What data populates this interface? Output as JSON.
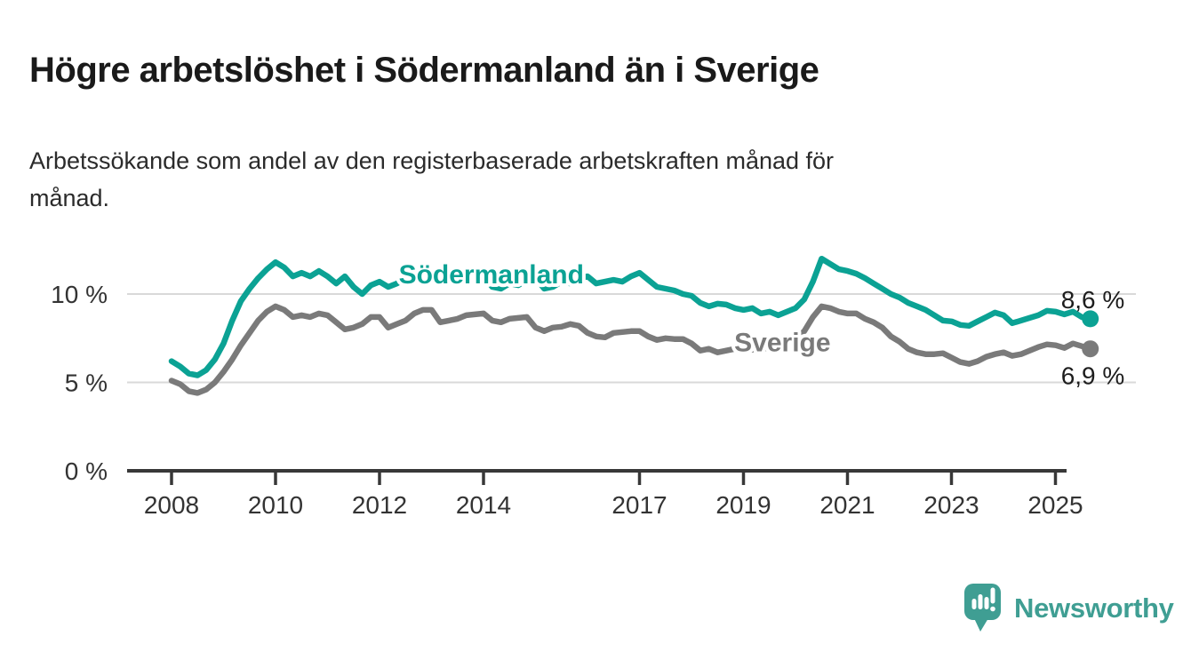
{
  "header": {
    "title": "Högre arbetslöshet i Södermanland än i Sverige",
    "subtitle": "Arbetssökande som andel av den registerbaserade arbetskraften månad för\nmånad."
  },
  "footer": {
    "brand": "Newsworthy",
    "brand_color": "#3f9e93",
    "logo_icon": "bar-chart-speech-bubble"
  },
  "colors": {
    "sodermanland_line": "#0ba294",
    "sverige_line": "#7a7a7a",
    "grid": "#d9d9d9",
    "axis": "#383838",
    "axis_text": "#333333",
    "value_text": "#1d1d1d"
  },
  "chart_data": {
    "type": "line",
    "title": "Högre arbetslöshet i Södermanland än i Sverige",
    "subtitle": "Arbetssökande som andel av den registerbaserade arbetskraften månad för månad.",
    "unit": "%",
    "grid": "horizontal",
    "legend_position": "inline-labels",
    "x_start": 2008,
    "x_step": 0.1667,
    "x_axis": {
      "ticks": [
        2008,
        2010,
        2012,
        2014,
        2017,
        2019,
        2021,
        2023,
        2025
      ]
    },
    "y_axis": {
      "range": [
        0,
        12.5
      ],
      "ticks": [
        {
          "value": 0,
          "label": "0 %"
        },
        {
          "value": 5,
          "label": "5 %"
        },
        {
          "value": 10,
          "label": "10 %"
        }
      ]
    },
    "series": [
      {
        "name": "Södermanland",
        "color": "#0ba294",
        "label_anchor": {
          "x": 2014.15,
          "y": 11.15
        },
        "value_label": "8,6 %",
        "value_label_side": "above",
        "end_value": 8.6,
        "values": [
          6.2,
          5.9,
          5.5,
          5.4,
          5.7,
          6.3,
          7.2,
          8.5,
          9.6,
          10.3,
          10.9,
          11.4,
          11.8,
          11.5,
          11.0,
          11.2,
          11.0,
          11.3,
          11.0,
          10.6,
          11.0,
          10.4,
          10.0,
          10.5,
          10.7,
          10.4,
          10.6,
          10.9,
          10.7,
          11.0,
          11.1,
          10.7,
          10.9,
          10.8,
          10.6,
          10.9,
          11.0,
          10.4,
          10.3,
          10.6,
          10.5,
          10.8,
          10.9,
          10.3,
          10.4,
          10.7,
          10.6,
          10.9,
          11.0,
          10.6,
          10.7,
          10.8,
          10.7,
          11.0,
          11.2,
          10.8,
          10.4,
          10.3,
          10.2,
          10.0,
          9.9,
          9.5,
          9.3,
          9.45,
          9.4,
          9.2,
          9.1,
          9.2,
          8.9,
          9.0,
          8.8,
          9.0,
          9.2,
          9.7,
          10.7,
          12.0,
          11.7,
          11.4,
          11.3,
          11.15,
          10.9,
          10.6,
          10.3,
          10.0,
          9.8,
          9.5,
          9.3,
          9.1,
          8.8,
          8.5,
          8.45,
          8.25,
          8.2,
          8.45,
          8.7,
          8.95,
          8.8,
          8.35,
          8.5,
          8.65,
          8.8,
          9.05,
          9.0,
          8.85,
          9.0,
          8.7,
          8.6
        ]
      },
      {
        "name": "Sverige",
        "color": "#7a7a7a",
        "label_anchor": {
          "x": 2019.75,
          "y": 7.3
        },
        "value_label": "6,9 %",
        "value_label_side": "below",
        "end_value": 6.9,
        "values": [
          5.1,
          4.9,
          4.5,
          4.4,
          4.6,
          5.0,
          5.6,
          6.3,
          7.1,
          7.8,
          8.5,
          9.0,
          9.3,
          9.1,
          8.7,
          8.8,
          8.7,
          8.9,
          8.8,
          8.4,
          8.0,
          8.1,
          8.3,
          8.7,
          8.7,
          8.1,
          8.3,
          8.5,
          8.9,
          9.1,
          9.1,
          8.4,
          8.5,
          8.6,
          8.8,
          8.85,
          8.9,
          8.5,
          8.4,
          8.6,
          8.65,
          8.7,
          8.1,
          7.9,
          8.1,
          8.15,
          8.3,
          8.2,
          7.8,
          7.6,
          7.55,
          7.8,
          7.85,
          7.9,
          7.9,
          7.6,
          7.4,
          7.5,
          7.45,
          7.45,
          7.2,
          6.8,
          6.9,
          6.7,
          6.8,
          6.9,
          6.9,
          6.85,
          6.9,
          6.95,
          7.0,
          7.1,
          7.4,
          7.9,
          8.7,
          9.3,
          9.2,
          9.0,
          8.9,
          8.9,
          8.6,
          8.4,
          8.1,
          7.6,
          7.3,
          6.9,
          6.7,
          6.6,
          6.6,
          6.65,
          6.4,
          6.15,
          6.05,
          6.2,
          6.45,
          6.6,
          6.7,
          6.5,
          6.6,
          6.8,
          7.0,
          7.15,
          7.1,
          6.95,
          7.2,
          7.05,
          6.9
        ]
      }
    ]
  }
}
